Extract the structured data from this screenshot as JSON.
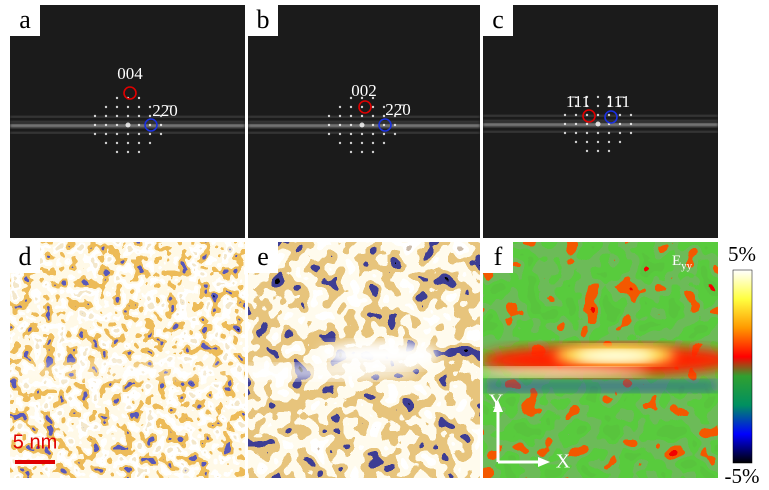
{
  "panels": [
    {
      "label": "a",
      "annotations": [
        "004",
        "22̄0"
      ]
    },
    {
      "label": "b",
      "annotations": [
        "002",
        "22̄0"
      ]
    },
    {
      "label": "c",
      "annotations": [
        "1̄11",
        "11̄1"
      ]
    },
    {
      "label": "d",
      "scale_bar": "5 nm"
    },
    {
      "label": "e"
    },
    {
      "label": "f",
      "component": {
        "symbol": "E",
        "subscript": "yy"
      },
      "axes": [
        "Y",
        "X"
      ]
    }
  ],
  "colorbar": {
    "max": "5%",
    "min": "-5%"
  }
}
